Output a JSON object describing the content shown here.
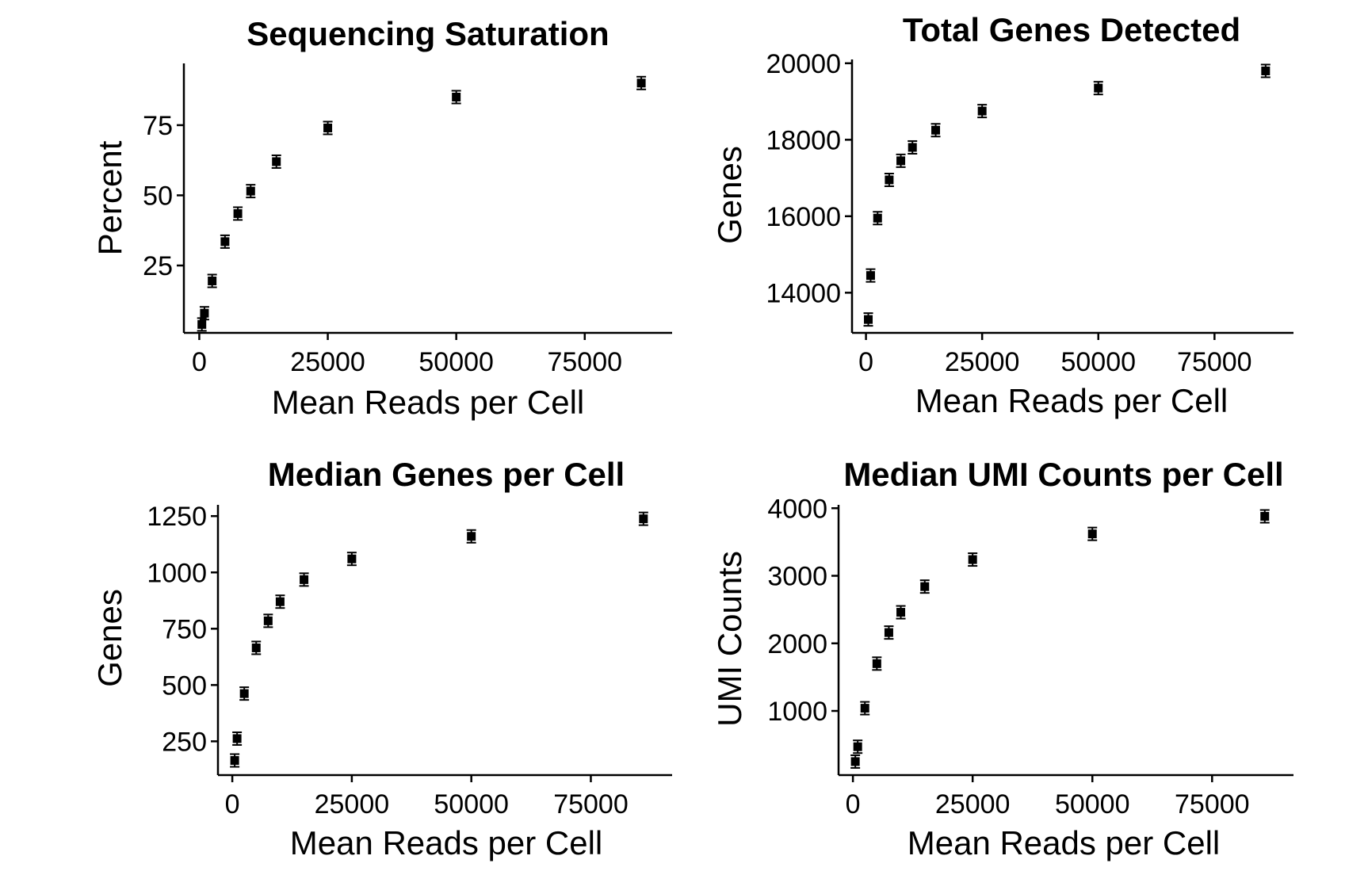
{
  "chart_data": [
    {
      "type": "scatter",
      "title": "Sequencing Saturation",
      "xlabel": "Mean Reads per Cell",
      "ylabel": "Percent",
      "xlim": [
        -3000,
        92000
      ],
      "ylim": [
        1,
        97
      ],
      "xticks": [
        0,
        25000,
        50000,
        75000
      ],
      "yticks": [
        25,
        50,
        75
      ],
      "x": [
        500,
        1000,
        2500,
        5000,
        7500,
        10000,
        15000,
        25000,
        50000,
        86000
      ],
      "y": [
        4,
        8,
        19.5,
        33.5,
        43.5,
        51.5,
        62,
        74,
        85,
        90
      ],
      "grid": false,
      "legend": "none"
    },
    {
      "type": "scatter",
      "title": "Total Genes Detected",
      "xlabel": "Mean Reads per Cell",
      "ylabel": "Genes",
      "xlim": [
        -3000,
        92000
      ],
      "ylim": [
        12950,
        20100
      ],
      "xticks": [
        0,
        25000,
        50000,
        75000
      ],
      "yticks": [
        14000,
        16000,
        18000,
        20000
      ],
      "x": [
        500,
        1000,
        2500,
        5000,
        7500,
        10000,
        15000,
        25000,
        50000,
        86000
      ],
      "y": [
        13300,
        14450,
        15950,
        16950,
        17450,
        17800,
        18250,
        18750,
        19350,
        19800
      ],
      "grid": false,
      "legend": "none"
    },
    {
      "type": "scatter",
      "title": "Median Genes per Cell",
      "xlabel": "Mean Reads per Cell",
      "ylabel": "Genes",
      "xlim": [
        -3000,
        92000
      ],
      "ylim": [
        100,
        1300
      ],
      "xticks": [
        0,
        25000,
        50000,
        75000
      ],
      "yticks": [
        250,
        500,
        750,
        1000,
        1250
      ],
      "x": [
        500,
        1000,
        2500,
        5000,
        7500,
        10000,
        15000,
        25000,
        50000,
        86000
      ],
      "y": [
        165,
        262,
        462,
        665,
        785,
        870,
        968,
        1060,
        1160,
        1238
      ],
      "grid": false,
      "legend": "none"
    },
    {
      "type": "scatter",
      "title": "Median UMI Counts per Cell",
      "xlabel": "Mean Reads per Cell",
      "ylabel": "UMI Counts",
      "xlim": [
        -3000,
        92000
      ],
      "ylim": [
        50,
        4050
      ],
      "xticks": [
        0,
        25000,
        50000,
        75000
      ],
      "yticks": [
        1000,
        2000,
        3000,
        4000
      ],
      "x": [
        500,
        1000,
        2500,
        5000,
        7500,
        10000,
        15000,
        25000,
        50000,
        86000
      ],
      "y": [
        250,
        470,
        1040,
        1700,
        2160,
        2460,
        2840,
        3240,
        3620,
        3880
      ],
      "grid": false,
      "legend": "none"
    }
  ]
}
